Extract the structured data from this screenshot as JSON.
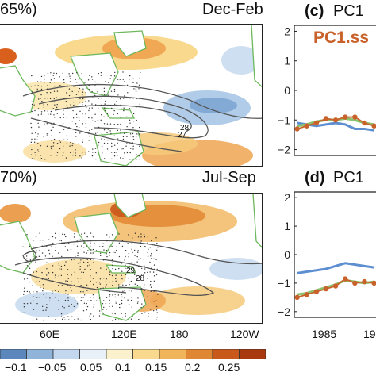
{
  "panel_top": {
    "left_label": "65%)",
    "season": "Dec-Feb",
    "contour_labels": [
      "28",
      "27"
    ]
  },
  "panel_bottom": {
    "left_label": "70%)",
    "season": "Jul-Sep",
    "contour_labels": [
      "29",
      "28"
    ]
  },
  "map_xticks": [
    "60E",
    "120E",
    "180",
    "120W"
  ],
  "colorbar": {
    "labels": [
      "−0.1",
      "−0.05",
      "0.05",
      "0.1",
      "0.15",
      "0.2",
      "0.25"
    ],
    "colors": [
      "#5b87bd",
      "#8fb3d9",
      "#c3d8ee",
      "#e8f1f8",
      "#fbf1cc",
      "#f8d98e",
      "#f0b45a",
      "#e08733",
      "#c9581b",
      "#a8390f"
    ]
  },
  "panel_c": {
    "tag": "(c)",
    "title": "PC1",
    "legend": "PC1.ss"
  },
  "panel_d": {
    "tag": "(d)",
    "title": "PC1"
  },
  "colors": {
    "orange": "#c9622a",
    "blue": "#5d8fd0",
    "green": "#8cc16b",
    "coast": "#6cb85a",
    "contour": "#555555"
  },
  "chart_data": [
    {
      "type": "line",
      "panel": "(c)",
      "ylim": [
        -2.2,
        2.2
      ],
      "yticks": [
        "2",
        "1",
        "0",
        "−1",
        "−2"
      ],
      "x": [
        1982,
        1983,
        1984,
        1985,
        1986,
        1987,
        1988,
        1989,
        1990
      ],
      "series": [
        {
          "name": "PC1.ss",
          "color": "#c9622a",
          "values": [
            -1.3,
            -1.2,
            -1.1,
            -0.95,
            -1.0,
            -0.9,
            -0.9,
            -1.1,
            -1.2
          ]
        },
        {
          "color": "#5d8fd0",
          "values": [
            -1.1,
            -1.15,
            -1.2,
            -1.15,
            -1.1,
            -1.15,
            -1.3,
            -1.3,
            -1.35
          ]
        },
        {
          "color": "#8cc16b",
          "values": [
            -1.2,
            -1.15,
            -1.05,
            -1.0,
            -1.0,
            -0.95,
            -1.0,
            -1.1,
            -1.15
          ]
        }
      ]
    },
    {
      "type": "line",
      "panel": "(d)",
      "ylim": [
        -2.2,
        2.2
      ],
      "yticks": [
        "2",
        "1",
        "0",
        "−1",
        "−2"
      ],
      "xticks": [
        "1985",
        "19"
      ],
      "x": [
        1982,
        1983,
        1984,
        1985,
        1986,
        1987,
        1988,
        1989,
        1990
      ],
      "series": [
        {
          "color": "#c9622a",
          "values": [
            -1.5,
            -1.4,
            -1.3,
            -1.2,
            -1.1,
            -0.85,
            -1.0,
            -0.95,
            -1.0
          ]
        },
        {
          "color": "#5d8fd0",
          "values": [
            -0.65,
            -0.6,
            -0.55,
            -0.5,
            -0.4,
            -0.3,
            -0.35,
            -0.4,
            -0.45
          ]
        },
        {
          "color": "#8cc16b",
          "values": [
            -1.4,
            -1.35,
            -1.25,
            -1.15,
            -1.05,
            -0.9,
            -0.95,
            -1.0,
            -0.95
          ]
        }
      ]
    }
  ]
}
